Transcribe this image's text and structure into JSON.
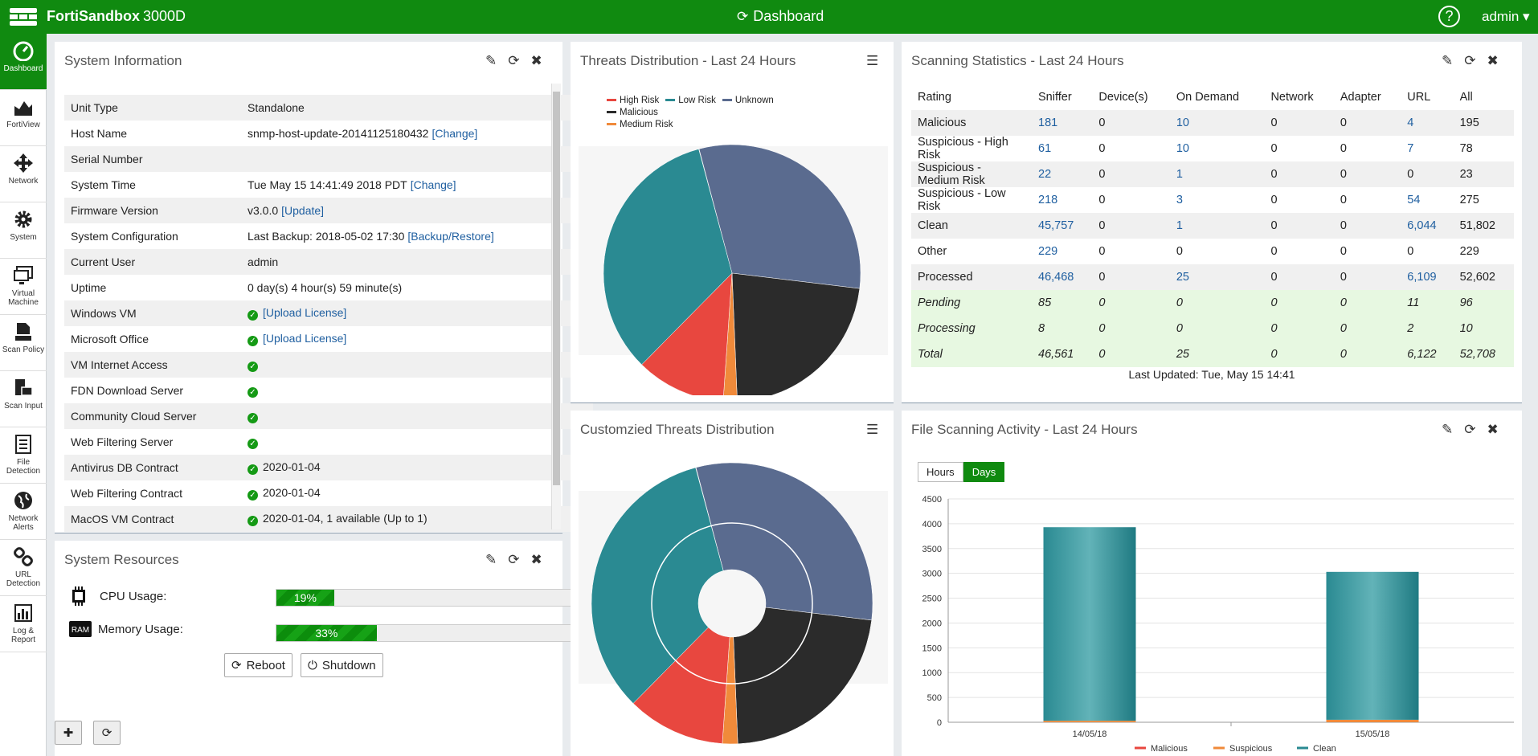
{
  "header": {
    "product": "FortiSandbox",
    "model": "3000D",
    "page_title": "Dashboard",
    "help": "?",
    "user": "admin"
  },
  "sidebar": {
    "items": [
      {
        "label": "Dashboard",
        "icon": "dashboard-icon"
      },
      {
        "label": "FortiView",
        "icon": "area-chart-icon"
      },
      {
        "label": "Network",
        "icon": "move-arrows-icon"
      },
      {
        "label": "System",
        "icon": "gear-icon"
      },
      {
        "label": "Virtual Machine",
        "icon": "monitor-icon"
      },
      {
        "label": "Scan Policy",
        "icon": "stamp-icon"
      },
      {
        "label": "Scan Input",
        "icon": "scan-input-icon"
      },
      {
        "label": "File Detection",
        "icon": "file-icon"
      },
      {
        "label": "Network Alerts",
        "icon": "globe-icon"
      },
      {
        "label": "URL Detection",
        "icon": "link-icon"
      },
      {
        "label": "Log & Report",
        "icon": "bar-chart-icon"
      }
    ]
  },
  "system_info": {
    "title": "System Information",
    "rows": [
      {
        "key": "Unit Type",
        "value": "Standalone",
        "link": "",
        "check": false
      },
      {
        "key": "Host Name",
        "value": "snmp-host-update-20141125180432",
        "link": "[Change]",
        "check": false
      },
      {
        "key": "Serial Number",
        "value": "",
        "link": "",
        "check": false
      },
      {
        "key": "System Time",
        "value": "Tue May 15 14:41:49 2018 PDT",
        "link": "[Change]",
        "check": false
      },
      {
        "key": "Firmware Version",
        "value": "v3.0.0",
        "link": "[Update]",
        "check": false
      },
      {
        "key": "System Configuration",
        "value": "Last Backup: 2018-05-02 17:30",
        "link": "[Backup/Restore]",
        "check": false
      },
      {
        "key": "Current User",
        "value": "admin",
        "link": "",
        "check": false
      },
      {
        "key": "Uptime",
        "value": "0 day(s) 4 hour(s) 59 minute(s)",
        "link": "",
        "check": false
      },
      {
        "key": "Windows VM",
        "value": "",
        "link": "[Upload License]",
        "check": true
      },
      {
        "key": "Microsoft Office",
        "value": "",
        "link": "[Upload License]",
        "check": true
      },
      {
        "key": "VM Internet Access",
        "value": "",
        "link": "",
        "check": true
      },
      {
        "key": "FDN Download Server",
        "value": "",
        "link": "",
        "check": true
      },
      {
        "key": "Community Cloud Server",
        "value": "",
        "link": "",
        "check": true
      },
      {
        "key": "Web Filtering Server",
        "value": "",
        "link": "",
        "check": true
      },
      {
        "key": "Antivirus DB Contract",
        "value": "2020-01-04",
        "link": "",
        "check": true
      },
      {
        "key": "Web Filtering Contract",
        "value": "2020-01-04",
        "link": "",
        "check": true
      },
      {
        "key": "MacOS VM Contract",
        "value": "2020-01-04, 1 available (Up to 1)",
        "link": "",
        "check": true
      }
    ]
  },
  "system_resources": {
    "title": "System Resources",
    "cpu_label": "CPU Usage:",
    "cpu_text": "19%",
    "cpu_percent": 19,
    "mem_label": "Memory Usage:",
    "mem_text": "33%",
    "mem_percent": 33,
    "reboot": "Reboot",
    "shutdown": "Shutdown",
    "ram_badge": "RAM"
  },
  "threats": {
    "title": "Threats Distribution - Last 24 Hours",
    "legend": [
      {
        "name": "High Risk",
        "color": "#e8473f"
      },
      {
        "name": "Low Risk",
        "color": "#2a8a92"
      },
      {
        "name": "Unknown",
        "color": "#5a6b8f"
      },
      {
        "name": "Malicious",
        "color": "#2b2b2b"
      },
      {
        "name": "Medium Risk",
        "color": "#f08a3a"
      }
    ]
  },
  "custom_threats": {
    "title": "Customzied Threats Distribution"
  },
  "scanning": {
    "title": "Scanning Statistics - Last 24 Hours",
    "headers": [
      "Rating",
      "Sniffer",
      "Device(s)",
      "On Demand",
      "Network",
      "Adapter",
      "URL",
      "All"
    ],
    "rows": [
      [
        "Malicious",
        "181",
        "0",
        "10",
        "0",
        "0",
        "4",
        "195"
      ],
      [
        "Suspicious - High Risk",
        "61",
        "0",
        "10",
        "0",
        "0",
        "7",
        "78"
      ],
      [
        "Suspicious - Medium Risk",
        "22",
        "0",
        "1",
        "0",
        "0",
        "0",
        "23"
      ],
      [
        "Suspicious - Low Risk",
        "218",
        "0",
        "3",
        "0",
        "0",
        "54",
        "275"
      ],
      [
        "Clean",
        "45,757",
        "0",
        "1",
        "0",
        "0",
        "6,044",
        "51,802"
      ],
      [
        "Other",
        "229",
        "0",
        "0",
        "0",
        "0",
        "0",
        "229"
      ],
      [
        "Processed",
        "46,468",
        "0",
        "25",
        "0",
        "0",
        "6,109",
        "52,602"
      ],
      [
        "Pending",
        "85",
        "0",
        "0",
        "0",
        "0",
        "11",
        "96"
      ],
      [
        "Processing",
        "8",
        "0",
        "0",
        "0",
        "0",
        "2",
        "10"
      ],
      [
        "Total",
        "46,561",
        "0",
        "25",
        "0",
        "0",
        "6,122",
        "52,708"
      ]
    ],
    "last_updated": "Last Updated: Tue, May 15 14:41"
  },
  "file_activity": {
    "title": "File Scanning Activity - Last 24 Hours",
    "tabs": [
      "Hours",
      "Days"
    ],
    "active_tab": "Days"
  },
  "chart_data": {
    "type": "bar",
    "categories": [
      "14/05/18",
      "15/05/18"
    ],
    "series": [
      {
        "name": "Malicious",
        "values": [
          0,
          0
        ],
        "color": "#e8473f"
      },
      {
        "name": "Suspicious",
        "values": [
          30,
          50
        ],
        "color": "#f08a3a"
      },
      {
        "name": "Clean",
        "values": [
          3900,
          2980
        ],
        "color": "#2a8a92"
      }
    ],
    "yticks": [
      "0",
      "500",
      "1000",
      "1500",
      "2000",
      "2500",
      "3000",
      "3500",
      "4000",
      "4500"
    ],
    "ylim": [
      0,
      4500
    ],
    "stacked": true,
    "legend": "bottom"
  }
}
